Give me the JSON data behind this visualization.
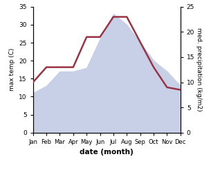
{
  "months": [
    "Jan",
    "Feb",
    "Mar",
    "Apr",
    "May",
    "Jun",
    "Jul",
    "Aug",
    "Sep",
    "Oct",
    "Nov",
    "Dec"
  ],
  "temp": [
    11,
    13,
    17,
    17,
    18,
    26,
    33,
    30,
    25,
    20,
    17,
    13
  ],
  "precip": [
    10,
    13,
    13,
    13,
    19,
    19,
    23,
    23,
    18,
    13,
    9,
    8.5
  ],
  "temp_color_fill": "#c8d0e8",
  "precip_color": "#993344",
  "xlabel": "date (month)",
  "ylabel_left": "max temp (C)",
  "ylabel_right": "med. precipitation (kg/m2)",
  "ylim_left": [
    0,
    35
  ],
  "ylim_right": [
    0,
    25
  ],
  "yticks_left": [
    0,
    5,
    10,
    15,
    20,
    25,
    30,
    35
  ],
  "yticks_right": [
    0,
    5,
    10,
    15,
    20,
    25
  ],
  "background_color": "#ffffff"
}
